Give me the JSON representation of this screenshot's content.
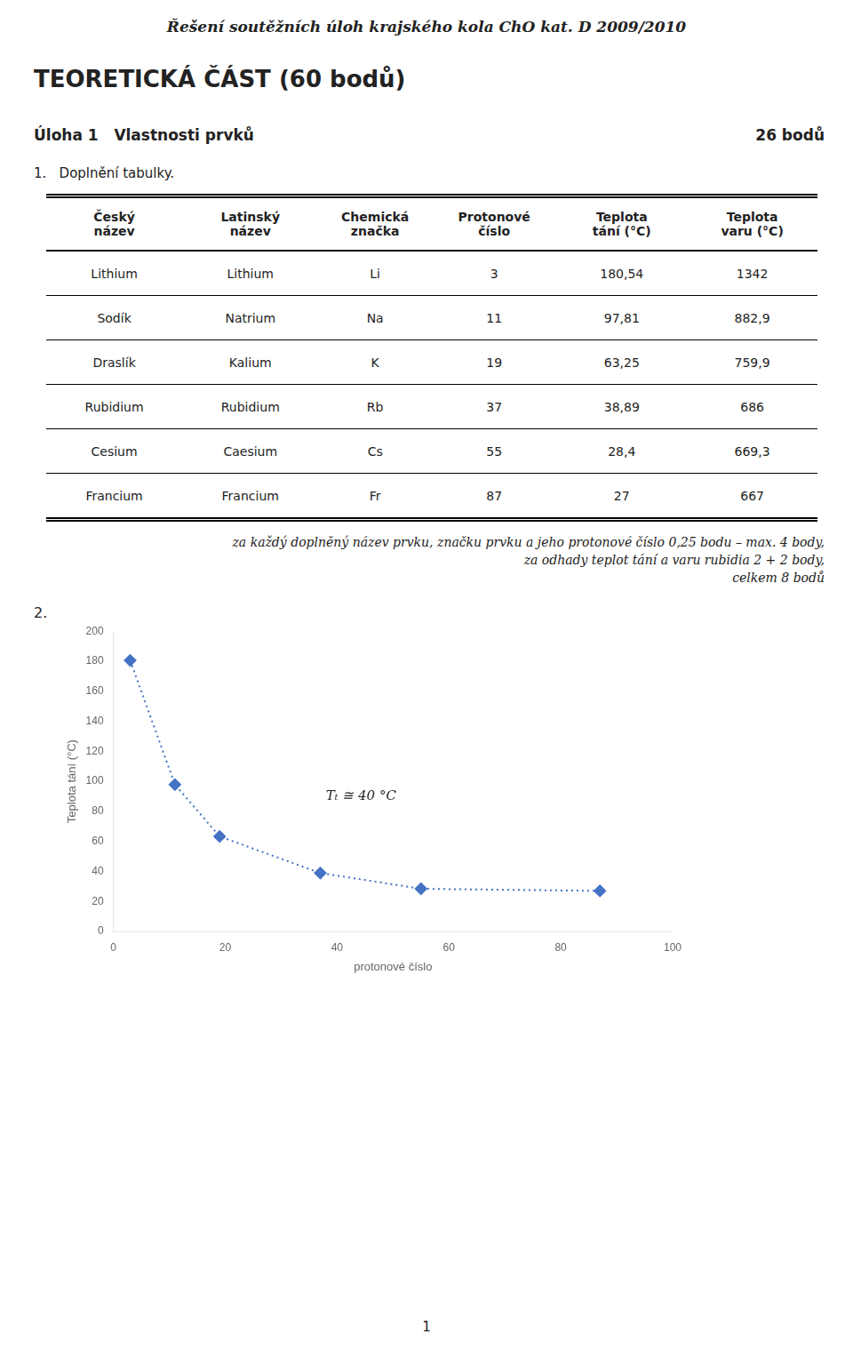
{
  "page": {
    "page_title": "Řešení soutěžních úloh krajského kola ChO kat. D 2009/2010",
    "section_title": "TEORETICKÁ ČÁST (60 bodů)",
    "task_title": "Úloha 1   Vlastnosti prvků",
    "task_points": "26 bodů",
    "task_number": "1.   Doplnění tabulky.",
    "table": {
      "columns": [
        [
          "Český",
          "název"
        ],
        [
          "Latinský",
          "název"
        ],
        [
          "Chemická",
          "značka"
        ],
        [
          "Protonové",
          "číslo"
        ],
        [
          "Teplota",
          "tání (°C)"
        ],
        [
          "Teplota",
          "varu (°C)"
        ]
      ],
      "rows": [
        [
          "Lithium",
          "Lithium",
          "Li",
          "3",
          "180,54",
          "1342"
        ],
        [
          "Sodík",
          "Natrium",
          "Na",
          "11",
          "97,81",
          "882,9"
        ],
        [
          "Draslík",
          "Kalium",
          "K",
          "19",
          "63,25",
          "759,9"
        ],
        [
          "Rubidium",
          "Rubidium",
          "Rb",
          "37",
          "38,89",
          "686"
        ],
        [
          "Cesium",
          "Caesium",
          "Cs",
          "55",
          "28,4",
          "669,3"
        ],
        [
          "Francium",
          "Francium",
          "Fr",
          "87",
          "27",
          "667"
        ]
      ]
    },
    "notes": [
      "za každý doplněný název prvku, značku prvku a jeho protonové číslo 0,25 bodu – max. 4 body,",
      "za odhady teplot tání a varu rubidia 2 + 2 body,",
      "celkem 8 bodů"
    ],
    "task2_number": "2.",
    "page_number": "1"
  },
  "chart_data": {
    "type": "line",
    "x": [
      3,
      11,
      19,
      37,
      55,
      87
    ],
    "values": [
      180.54,
      97.81,
      63.25,
      38.89,
      28.4,
      27
    ],
    "color": "#4472C4",
    "marker": "diamond",
    "line_style": "dotted",
    "xlabel": "protonové číslo",
    "ylabel": "Teplota tání (°C)",
    "xlim": [
      0,
      100
    ],
    "ylim": [
      0,
      200
    ],
    "xticks": [
      0,
      20,
      40,
      60,
      80,
      100
    ],
    "yticks": [
      0,
      20,
      40,
      60,
      80,
      100,
      120,
      140,
      160,
      180,
      200
    ],
    "grid": false,
    "annotations": [
      {
        "text": "Tₜ ≅ 40 °C",
        "x": 38,
        "y": 90
      }
    ]
  }
}
